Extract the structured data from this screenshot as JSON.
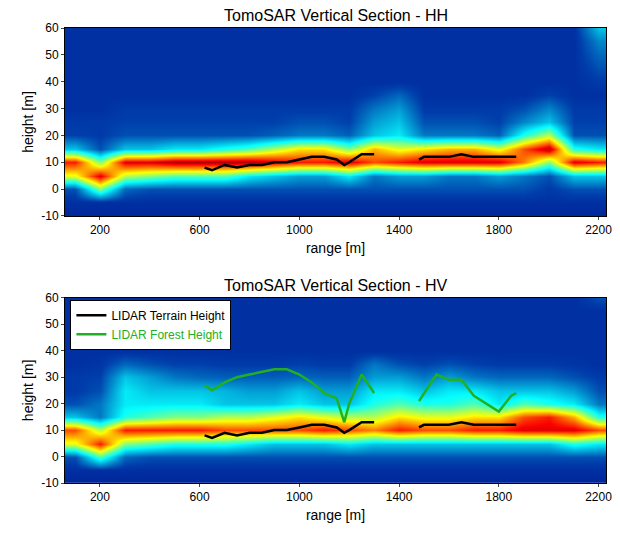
{
  "chart_data": [
    {
      "type": "heatmap",
      "title": "TomoSAR Vertical Section - HH",
      "xlabel": "range [m]",
      "ylabel": "height [m]",
      "xlim": [
        60,
        2230
      ],
      "ylim": [
        -10,
        60
      ],
      "xticks": [
        200,
        600,
        1000,
        1400,
        1800,
        2200
      ],
      "yticks": [
        -10,
        0,
        10,
        20,
        30,
        40,
        50,
        60
      ],
      "x": [
        100,
        200,
        300,
        400,
        500,
        600,
        700,
        800,
        900,
        1000,
        1100,
        1200,
        1300,
        1400,
        1500,
        1600,
        1700,
        1800,
        1900,
        2000,
        2100,
        2200
      ],
      "y": [
        -10,
        -5,
        0,
        5,
        10,
        15,
        20,
        25,
        30,
        35,
        40,
        45,
        50,
        55,
        60
      ],
      "zlim": [
        0,
        1
      ],
      "z": [
        [
          0.08,
          0.08,
          0.08,
          0.08,
          0.08,
          0.08,
          0.08,
          0.08,
          0.08,
          0.08,
          0.08,
          0.08,
          0.08,
          0.08,
          0.08,
          0.08,
          0.08,
          0.08,
          0.08,
          0.08,
          0.08,
          0.08
        ],
        [
          0.1,
          0.1,
          0.1,
          0.1,
          0.1,
          0.1,
          0.1,
          0.1,
          0.1,
          0.1,
          0.1,
          0.1,
          0.1,
          0.1,
          0.1,
          0.1,
          0.1,
          0.1,
          0.1,
          0.1,
          0.1,
          0.1
        ],
        [
          0.15,
          0.5,
          0.18,
          0.15,
          0.15,
          0.15,
          0.15,
          0.15,
          0.15,
          0.15,
          0.15,
          0.15,
          0.15,
          0.15,
          0.15,
          0.15,
          0.15,
          0.15,
          0.15,
          0.12,
          0.15,
          0.15
        ],
        [
          0.6,
          0.9,
          0.55,
          0.5,
          0.45,
          0.45,
          0.45,
          0.35,
          0.3,
          0.25,
          0.25,
          0.35,
          0.2,
          0.25,
          0.25,
          0.2,
          0.2,
          0.25,
          0.2,
          0.15,
          0.3,
          0.3
        ],
        [
          0.85,
          0.5,
          0.9,
          0.9,
          0.95,
          0.95,
          0.95,
          0.95,
          0.9,
          0.85,
          0.85,
          0.9,
          0.8,
          0.85,
          0.9,
          0.9,
          0.9,
          0.9,
          0.75,
          0.5,
          0.9,
          0.85
        ],
        [
          0.3,
          0.15,
          0.3,
          0.3,
          0.35,
          0.35,
          0.4,
          0.45,
          0.55,
          0.65,
          0.65,
          0.5,
          0.7,
          0.6,
          0.65,
          0.7,
          0.7,
          0.6,
          0.8,
          0.95,
          0.4,
          0.35
        ],
        [
          0.13,
          0.12,
          0.15,
          0.15,
          0.15,
          0.15,
          0.15,
          0.15,
          0.17,
          0.2,
          0.2,
          0.17,
          0.3,
          0.35,
          0.2,
          0.2,
          0.2,
          0.17,
          0.4,
          0.55,
          0.15,
          0.15
        ],
        [
          0.12,
          0.12,
          0.13,
          0.13,
          0.13,
          0.13,
          0.13,
          0.13,
          0.13,
          0.15,
          0.15,
          0.13,
          0.25,
          0.3,
          0.15,
          0.15,
          0.15,
          0.13,
          0.22,
          0.3,
          0.13,
          0.13
        ],
        [
          0.1,
          0.1,
          0.12,
          0.12,
          0.12,
          0.12,
          0.12,
          0.12,
          0.12,
          0.12,
          0.12,
          0.12,
          0.2,
          0.25,
          0.12,
          0.12,
          0.12,
          0.12,
          0.15,
          0.22,
          0.12,
          0.12
        ],
        [
          0.1,
          0.1,
          0.1,
          0.1,
          0.1,
          0.1,
          0.1,
          0.1,
          0.1,
          0.1,
          0.1,
          0.1,
          0.13,
          0.18,
          0.1,
          0.1,
          0.1,
          0.1,
          0.1,
          0.13,
          0.1,
          0.1
        ],
        [
          0.1,
          0.1,
          0.1,
          0.1,
          0.1,
          0.1,
          0.1,
          0.1,
          0.1,
          0.1,
          0.1,
          0.1,
          0.1,
          0.1,
          0.1,
          0.1,
          0.1,
          0.1,
          0.1,
          0.1,
          0.1,
          0.12
        ],
        [
          0.1,
          0.1,
          0.1,
          0.1,
          0.1,
          0.1,
          0.1,
          0.1,
          0.1,
          0.1,
          0.1,
          0.1,
          0.1,
          0.1,
          0.1,
          0.1,
          0.1,
          0.1,
          0.1,
          0.1,
          0.1,
          0.15
        ],
        [
          0.1,
          0.1,
          0.1,
          0.1,
          0.1,
          0.1,
          0.1,
          0.1,
          0.1,
          0.1,
          0.1,
          0.1,
          0.1,
          0.1,
          0.1,
          0.1,
          0.1,
          0.1,
          0.1,
          0.1,
          0.1,
          0.18
        ],
        [
          0.1,
          0.1,
          0.1,
          0.1,
          0.1,
          0.1,
          0.1,
          0.1,
          0.1,
          0.1,
          0.1,
          0.1,
          0.1,
          0.1,
          0.1,
          0.1,
          0.1,
          0.1,
          0.1,
          0.1,
          0.1,
          0.22
        ],
        [
          0.1,
          0.1,
          0.1,
          0.1,
          0.1,
          0.1,
          0.1,
          0.1,
          0.1,
          0.1,
          0.1,
          0.1,
          0.1,
          0.1,
          0.1,
          0.1,
          0.1,
          0.1,
          0.1,
          0.1,
          0.1,
          0.3
        ]
      ],
      "series": [
        {
          "name": "LIDAR Terrain Height",
          "color": "#000000",
          "type": "line",
          "x": [
            620,
            650,
            700,
            750,
            800,
            850,
            900,
            950,
            1000,
            1050,
            1100,
            1150,
            1180,
            1200,
            1250,
            1300,
            1400,
            1480,
            1500,
            1550,
            1600,
            1650,
            1700,
            1750,
            1800,
            1850,
            1870
          ],
          "values": [
            8,
            7,
            9,
            8,
            9,
            9,
            10,
            10,
            11,
            12,
            12,
            11,
            9,
            10,
            13,
            13,
            null,
            11,
            12,
            12,
            12,
            13,
            12,
            12,
            12,
            12,
            12
          ]
        }
      ]
    },
    {
      "type": "heatmap",
      "title": "TomoSAR Vertical Section - HV",
      "xlabel": "range [m]",
      "ylabel": "height [m]",
      "xlim": [
        60,
        2230
      ],
      "ylim": [
        -10,
        60
      ],
      "xticks": [
        200,
        600,
        1000,
        1400,
        1800,
        2200
      ],
      "yticks": [
        -10,
        0,
        10,
        20,
        30,
        40,
        50,
        60
      ],
      "legend": "upper left",
      "x": [
        100,
        200,
        300,
        400,
        500,
        600,
        700,
        800,
        900,
        1000,
        1100,
        1200,
        1300,
        1400,
        1500,
        1600,
        1700,
        1800,
        1900,
        2000,
        2100,
        2200
      ],
      "y": [
        -10,
        -5,
        0,
        5,
        10,
        15,
        20,
        25,
        30,
        35,
        40,
        45,
        50,
        55,
        60
      ],
      "zlim": [
        0,
        1
      ],
      "z": [
        [
          0.08,
          0.08,
          0.08,
          0.08,
          0.08,
          0.08,
          0.08,
          0.08,
          0.08,
          0.08,
          0.08,
          0.08,
          0.08,
          0.08,
          0.08,
          0.08,
          0.08,
          0.08,
          0.08,
          0.08,
          0.08,
          0.08
        ],
        [
          0.1,
          0.1,
          0.1,
          0.1,
          0.1,
          0.1,
          0.1,
          0.1,
          0.1,
          0.1,
          0.1,
          0.1,
          0.1,
          0.1,
          0.1,
          0.1,
          0.1,
          0.1,
          0.1,
          0.1,
          0.1,
          0.1
        ],
        [
          0.15,
          0.45,
          0.18,
          0.15,
          0.15,
          0.15,
          0.15,
          0.15,
          0.15,
          0.15,
          0.15,
          0.15,
          0.15,
          0.15,
          0.15,
          0.15,
          0.15,
          0.15,
          0.15,
          0.15,
          0.15,
          0.15
        ],
        [
          0.6,
          0.85,
          0.5,
          0.45,
          0.4,
          0.4,
          0.4,
          0.35,
          0.3,
          0.3,
          0.3,
          0.35,
          0.3,
          0.3,
          0.3,
          0.3,
          0.3,
          0.3,
          0.3,
          0.3,
          0.4,
          0.35
        ],
        [
          0.8,
          0.55,
          0.85,
          0.85,
          0.85,
          0.85,
          0.8,
          0.8,
          0.8,
          0.8,
          0.85,
          0.8,
          0.75,
          0.85,
          0.8,
          0.8,
          0.85,
          0.85,
          0.9,
          0.9,
          0.9,
          0.8
        ],
        [
          0.3,
          0.2,
          0.4,
          0.45,
          0.5,
          0.5,
          0.55,
          0.55,
          0.6,
          0.65,
          0.6,
          0.55,
          0.55,
          0.65,
          0.6,
          0.6,
          0.65,
          0.65,
          0.8,
          0.85,
          0.7,
          0.4
        ],
        [
          0.15,
          0.2,
          0.35,
          0.35,
          0.35,
          0.35,
          0.3,
          0.3,
          0.3,
          0.35,
          0.3,
          0.3,
          0.4,
          0.45,
          0.4,
          0.4,
          0.45,
          0.35,
          0.45,
          0.4,
          0.35,
          0.2
        ],
        [
          0.12,
          0.15,
          0.35,
          0.3,
          0.3,
          0.3,
          0.28,
          0.25,
          0.25,
          0.3,
          0.25,
          0.25,
          0.35,
          0.35,
          0.3,
          0.35,
          0.35,
          0.3,
          0.3,
          0.3,
          0.25,
          0.15
        ],
        [
          0.12,
          0.13,
          0.3,
          0.25,
          0.2,
          0.18,
          0.17,
          0.17,
          0.17,
          0.18,
          0.17,
          0.17,
          0.25,
          0.25,
          0.2,
          0.25,
          0.2,
          0.18,
          0.18,
          0.18,
          0.15,
          0.12
        ],
        [
          0.1,
          0.11,
          0.18,
          0.15,
          0.13,
          0.13,
          0.12,
          0.12,
          0.12,
          0.13,
          0.12,
          0.12,
          0.2,
          0.15,
          0.13,
          0.15,
          0.13,
          0.12,
          0.12,
          0.12,
          0.11,
          0.1
        ],
        [
          0.1,
          0.1,
          0.1,
          0.1,
          0.1,
          0.1,
          0.1,
          0.1,
          0.1,
          0.1,
          0.1,
          0.1,
          0.1,
          0.1,
          0.1,
          0.1,
          0.1,
          0.1,
          0.1,
          0.1,
          0.1,
          0.1
        ],
        [
          0.1,
          0.1,
          0.1,
          0.1,
          0.1,
          0.1,
          0.1,
          0.1,
          0.1,
          0.1,
          0.1,
          0.1,
          0.1,
          0.1,
          0.1,
          0.1,
          0.1,
          0.1,
          0.1,
          0.1,
          0.1,
          0.1
        ],
        [
          0.1,
          0.1,
          0.1,
          0.1,
          0.1,
          0.1,
          0.1,
          0.1,
          0.1,
          0.1,
          0.1,
          0.1,
          0.1,
          0.1,
          0.1,
          0.1,
          0.1,
          0.1,
          0.1,
          0.1,
          0.1,
          0.1
        ],
        [
          0.1,
          0.1,
          0.1,
          0.1,
          0.1,
          0.1,
          0.1,
          0.1,
          0.1,
          0.1,
          0.1,
          0.1,
          0.1,
          0.1,
          0.1,
          0.1,
          0.1,
          0.1,
          0.1,
          0.1,
          0.1,
          0.1
        ],
        [
          0.1,
          0.1,
          0.1,
          0.1,
          0.1,
          0.1,
          0.1,
          0.1,
          0.1,
          0.1,
          0.1,
          0.1,
          0.1,
          0.1,
          0.1,
          0.1,
          0.1,
          0.1,
          0.1,
          0.1,
          0.1,
          0.15
        ]
      ],
      "series": [
        {
          "name": "LIDAR Terrain Height",
          "color": "#000000",
          "type": "line",
          "x": [
            620,
            650,
            700,
            750,
            800,
            850,
            900,
            950,
            1000,
            1050,
            1100,
            1150,
            1180,
            1200,
            1250,
            1300,
            1400,
            1480,
            1500,
            1550,
            1600,
            1650,
            1700,
            1750,
            1800,
            1850,
            1870
          ],
          "values": [
            8,
            7,
            9,
            8,
            9,
            9,
            10,
            10,
            11,
            12,
            12,
            11,
            9,
            10,
            13,
            13,
            null,
            11,
            12,
            12,
            12,
            13,
            12,
            12,
            12,
            12,
            12
          ]
        },
        {
          "name": "LIDAR Forest Height",
          "color": "#22b022",
          "type": "line",
          "x": [
            620,
            650,
            700,
            750,
            800,
            850,
            900,
            950,
            1000,
            1050,
            1100,
            1150,
            1180,
            1200,
            1250,
            1300,
            1400,
            1480,
            1500,
            1550,
            1600,
            1650,
            1700,
            1750,
            1800,
            1850,
            1870
          ],
          "values": [
            27,
            25,
            28,
            30,
            31,
            32,
            33,
            33,
            31,
            28,
            24,
            22,
            13,
            20,
            31,
            24,
            null,
            21,
            24,
            31,
            29,
            29,
            23,
            20,
            17,
            23,
            24
          ]
        }
      ]
    }
  ]
}
